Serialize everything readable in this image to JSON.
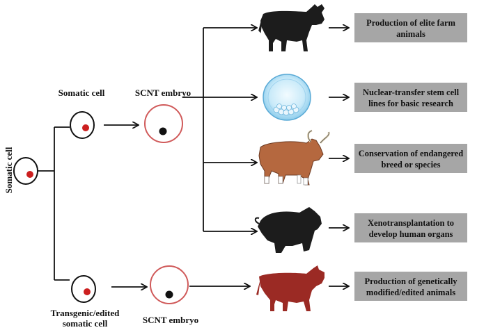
{
  "labels": {
    "side": "Somatic cell",
    "top_cell": "Somatic cell",
    "top_embryo": "SCNT embryo",
    "bottom_cell_line1": "Transgenic/edited",
    "bottom_cell_line2": "somatic cell",
    "bottom_embryo": "SCNT embryo"
  },
  "applications": [
    {
      "line1": "Production of elite farm",
      "line2": "animals",
      "icon": "cow-icon"
    },
    {
      "line1": "Nuclear-transfer stem cell",
      "line2": "lines for basic research",
      "icon": "blastocyst-icon"
    },
    {
      "line1": "Conservation of endangered",
      "line2": "breed or species",
      "icon": "banteng-icon"
    },
    {
      "line1": "Xenotransplantation to",
      "line2": "develop human organs",
      "icon": "pig-icon"
    },
    {
      "line1": "Production of genetically",
      "line2": "modified/edited animals",
      "icon": "cow-icon"
    }
  ],
  "colors": {
    "box_fill": "#a6a6a6",
    "nucleus_red": "#cc1f1f",
    "embryo_ring": "#d05a5a",
    "animal_black": "#1c1c1c",
    "gm_cow": "#9b2a24",
    "banteng": "#b5683f",
    "blastocyst": "#bfe3f6"
  }
}
